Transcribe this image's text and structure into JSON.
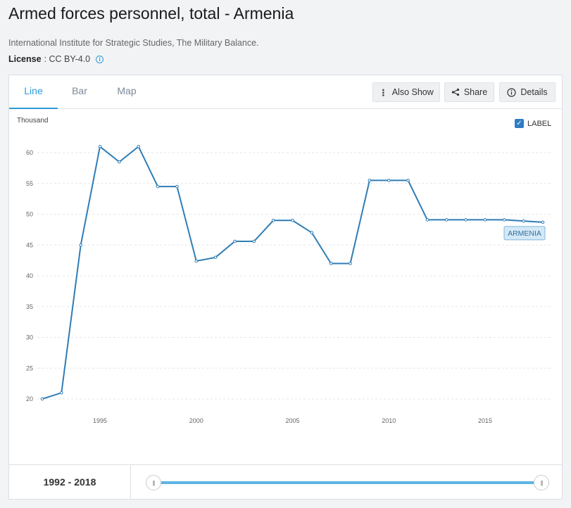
{
  "page": {
    "title": "Armed forces personnel, total - Armenia",
    "source": "International Institute for Strategic Studies, The Military Balance.",
    "license_label": "License",
    "license_value": ": CC BY-4.0"
  },
  "tabs": [
    {
      "label": "Line",
      "active": true
    },
    {
      "label": "Bar",
      "active": false
    },
    {
      "label": "Map",
      "active": false
    }
  ],
  "toolbar": {
    "also_show_label": "Also Show",
    "share_label": "Share",
    "details_label": "Details"
  },
  "label_toggle": {
    "label": "LABEL",
    "checked": true
  },
  "footer": {
    "range_start": "1992",
    "range_sep": " - ",
    "range_end": "2018"
  },
  "colors": {
    "line": "#2f7db5",
    "accent": "#2e9ad9",
    "series_label_bg": "#d4e9f6"
  },
  "chart_data": {
    "type": "line",
    "title": "",
    "ylabel": "Thousand",
    "xlabel": "",
    "ylim": [
      20,
      60
    ],
    "yticks": [
      20,
      25,
      30,
      35,
      40,
      45,
      50,
      55,
      60
    ],
    "xticks": [
      1995,
      2000,
      2005,
      2010,
      2015
    ],
    "grid": true,
    "series": [
      {
        "name": "ARMENIA",
        "x": [
          1992,
          1993,
          1994,
          1995,
          1996,
          1997,
          1998,
          1999,
          2000,
          2001,
          2002,
          2003,
          2004,
          2005,
          2006,
          2007,
          2008,
          2009,
          2010,
          2011,
          2012,
          2013,
          2014,
          2015,
          2016,
          2017,
          2018
        ],
        "values": [
          20.0,
          21.0,
          45.0,
          61.0,
          58.5,
          61.0,
          54.5,
          54.5,
          42.4,
          43.0,
          45.6,
          45.6,
          49.0,
          49.0,
          47.0,
          42.0,
          42.0,
          55.5,
          55.5,
          55.5,
          49.1,
          49.1,
          49.1,
          49.1,
          49.1,
          48.9,
          48.7
        ]
      }
    ]
  }
}
